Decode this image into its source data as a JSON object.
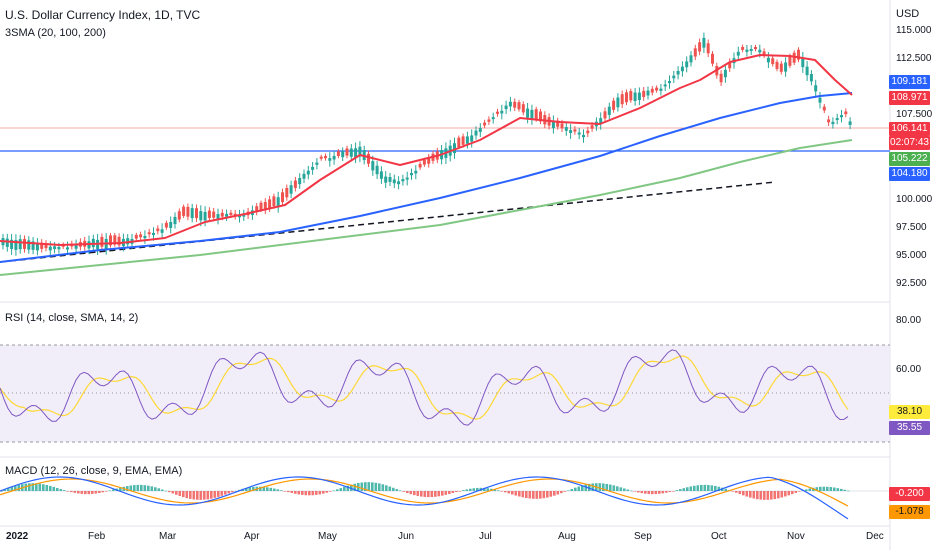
{
  "header": {
    "title": "U.S. Dollar Currency Index, 1D, TVC",
    "indicator": "3SMA (20, 100, 200)",
    "currency": "USD"
  },
  "price_axis": {
    "ticks": [
      "115.000",
      "112.500",
      "107.500",
      "100.000",
      "97.500",
      "95.000",
      "92.500"
    ]
  },
  "price_badges": [
    {
      "id": "sma100",
      "value": "109.181",
      "color": "#2962ff"
    },
    {
      "id": "sma20",
      "value": "108.971",
      "color": "#f23645"
    },
    {
      "id": "last",
      "value": "106.141",
      "color": "#f23645"
    },
    {
      "id": "countdown",
      "value": "02:07:43",
      "color": "#f23645"
    },
    {
      "id": "sma200",
      "value": "105.222",
      "color": "#4caf50"
    },
    {
      "id": "hline",
      "value": "104.180",
      "color": "#2962ff"
    }
  ],
  "rsi": {
    "label": "RSI (14, close, SMA, 14, 2)",
    "ticks": [
      "80.00",
      "60.00"
    ],
    "badges": [
      {
        "value": "38.10",
        "color": "#ffeb3b",
        "text_color": "#131722"
      },
      {
        "value": "35.55",
        "color": "#7e57c2",
        "text_color": "#ffffff"
      }
    ]
  },
  "macd": {
    "label": "MACD (12, 26, close, 9, EMA, EMA)",
    "badges": [
      {
        "value": "-0.200",
        "color": "#f23645",
        "text_color": "#ffffff"
      },
      {
        "value": "-1.078",
        "color": "#ff9800",
        "text_color": "#131722"
      }
    ]
  },
  "time_axis": [
    "2022",
    "Feb",
    "Mar",
    "Apr",
    "May",
    "Jun",
    "Jul",
    "Aug",
    "Sep",
    "Oct",
    "Nov",
    "Dec"
  ],
  "colors": {
    "up": "#26a69a",
    "down": "#ef5350",
    "sma20": "#f23645",
    "sma100": "#2962ff",
    "sma200": "#81c784",
    "rsi": "#7e57c2",
    "rsi_ma": "#fdd835",
    "macd": "#2962ff",
    "signal": "#ff9800"
  },
  "chart_data": {
    "type": "line",
    "x": [
      "2022-01",
      "2022-02",
      "2022-03",
      "2022-04",
      "2022-05",
      "2022-06",
      "2022-07",
      "2022-08",
      "2022-09",
      "2022-10",
      "2022-11"
    ],
    "series": [
      {
        "values": [
          96.2,
          96.0,
          98.5,
          99.8,
          103.9,
          103.0,
          106.5,
          108.0,
          112.5,
          113.0,
          106.1
        ]
      },
      {
        "values": [
          96.0,
          96.0,
          97.4,
          99.4,
          102.8,
          102.5,
          105.8,
          106.8,
          109.5,
          112.2,
          108.971
        ]
      },
      {
        "values": [
          95.3,
          95.5,
          95.9,
          96.7,
          98.3,
          99.4,
          101.0,
          102.6,
          104.8,
          107.3,
          109.181
        ]
      },
      {
        "values": [
          92.9,
          93.2,
          93.8,
          94.7,
          95.9,
          97.0,
          98.3,
          99.7,
          101.4,
          103.4,
          105.222
        ]
      }
    ],
    "ylim": [
      91,
      116
    ]
  }
}
